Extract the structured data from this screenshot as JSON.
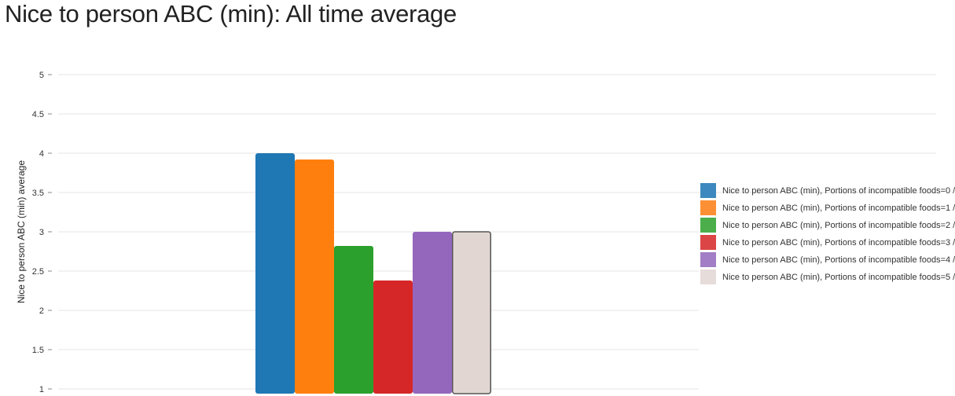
{
  "title": "Nice to person ABC (min): All time average",
  "chart_data": {
    "type": "bar",
    "title": "Nice to person ABC (min): All time average",
    "xlabel": "",
    "ylabel": "Nice to person ABC (min) average",
    "ylim": [
      1,
      5
    ],
    "yticks": [
      "1",
      "1.5",
      "2",
      "2.5",
      "3",
      "3.5",
      "4",
      "4.5",
      "5"
    ],
    "categories": [
      ""
    ],
    "grid": true,
    "legend_position": "right",
    "series": [
      {
        "name": "Nice to person ABC (min), Portions of incompatible foods=0 /",
        "values": [
          4.0
        ],
        "color": "#1f77b4",
        "legend_color": "#3d89bf"
      },
      {
        "name": "Nice to person ABC (min), Portions of incompatible foods=1 /",
        "values": [
          3.92
        ],
        "color": "#ff7f0e",
        "legend_color": "#fd8f34"
      },
      {
        "name": "Nice to person ABC (min), Portions of incompatible foods=2 /",
        "values": [
          2.82
        ],
        "color": "#2ca02c",
        "legend_color": "#4bae4b"
      },
      {
        "name": "Nice to person ABC (min), Portions of incompatible foods=3 /",
        "values": [
          2.38
        ],
        "color": "#d62728",
        "legend_color": "#dc4546"
      },
      {
        "name": "Nice to person ABC (min), Portions of incompatible foods=4 /",
        "values": [
          3.0
        ],
        "color": "#9467bd",
        "legend_color": "#a17ec5"
      },
      {
        "name": "Nice to person ABC (min), Portions of incompatible foods=5 /",
        "values": [
          3.0
        ],
        "color": "#e2d6d2",
        "legend_color": "#e6dcd9",
        "stroke": "#555555"
      }
    ]
  }
}
